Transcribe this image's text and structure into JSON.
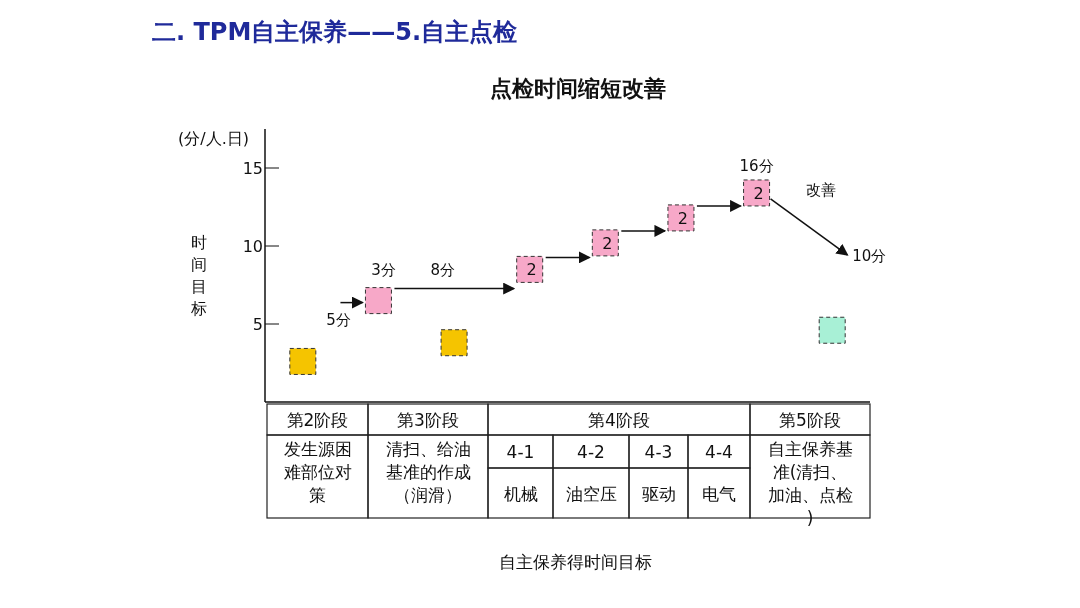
{
  "chart_data": {
    "type": "scatter",
    "title": "二. TPM自主保养——5.自主点检",
    "subtitle": "点检时间缩短改善",
    "ylabel": "时间目标",
    "categories": [
      null,
      null,
      null,
      null,
      null,
      null,
      null,
      null
    ],
    "ylim": [
      0,
      17.5
    ],
    "yticks": [
      5,
      10,
      15
    ],
    "marker": "square",
    "line_style": "dashed",
    "series": [
      {
        "color": "#f5c400",
        "values": [
          2.6,
          null,
          3.8,
          null,
          null,
          null,
          null,
          null
        ]
      },
      {
        "color": "#f7a8c8",
        "values": [
          null,
          6.5,
          null,
          8.5,
          10.2,
          11.8,
          13.4,
          null
        ]
      },
      {
        "color": "#a8f0d6",
        "values": [
          null,
          null,
          null,
          null,
          null,
          null,
          null,
          4.6
        ]
      }
    ],
    "annotations": [
      "(分/人.日)",
      "5分",
      "3分",
      "8分",
      "16分",
      "改善",
      "10分",
      "2",
      "2",
      "2",
      "2",
      "第2阶段",
      "第3阶段",
      "第4阶段",
      "第5阶段",
      "发生源困难部位对策",
      "清扫、给油基准的作成（润滑）",
      "4-1",
      "4-2",
      "4-3",
      "4-4",
      "机械",
      "油空压",
      "驱动",
      "电气",
      "自主保养基准(清扫、加油、点检)",
      "自主保养得时间目标"
    ]
  }
}
